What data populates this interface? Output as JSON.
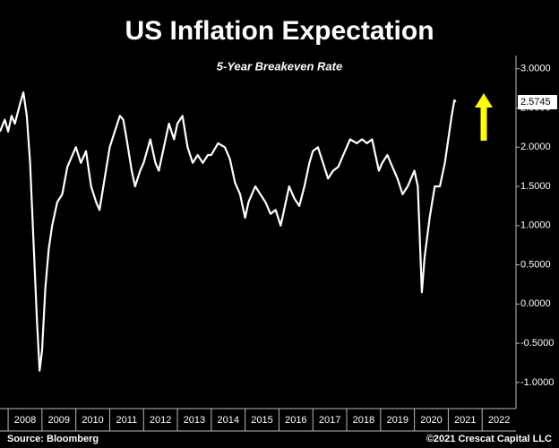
{
  "chart_data": {
    "type": "line",
    "title": "US Inflation Expectation",
    "subtitle": "5-Year Breakeven Rate",
    "source": "Source: Bloomberg",
    "credit": "©2021 Crescat Capital LLC",
    "color": "#ffffff",
    "arrow_color": "#ffff00",
    "x": [
      2007.76,
      2007.9,
      2008.0,
      2008.1,
      2008.2,
      2008.35,
      2008.45,
      2008.55,
      2008.65,
      2008.75,
      2008.85,
      2008.93,
      2009.0,
      2009.1,
      2009.2,
      2009.3,
      2009.45,
      2009.6,
      2009.75,
      2009.9,
      2010.0,
      2010.15,
      2010.3,
      2010.45,
      2010.6,
      2010.7,
      2010.85,
      2011.0,
      2011.15,
      2011.3,
      2011.4,
      2011.5,
      2011.65,
      2011.75,
      2011.9,
      2012.0,
      2012.2,
      2012.35,
      2012.45,
      2012.6,
      2012.75,
      2012.9,
      2013.0,
      2013.15,
      2013.3,
      2013.45,
      2013.6,
      2013.75,
      2013.9,
      2014.0,
      2014.2,
      2014.4,
      2014.55,
      2014.7,
      2014.85,
      2015.0,
      2015.1,
      2015.3,
      2015.45,
      2015.6,
      2015.75,
      2015.9,
      2016.05,
      2016.15,
      2016.3,
      2016.45,
      2016.6,
      2016.75,
      2016.9,
      2017.0,
      2017.15,
      2017.3,
      2017.45,
      2017.6,
      2017.75,
      2017.9,
      2018.1,
      2018.3,
      2018.45,
      2018.6,
      2018.75,
      2018.85,
      2018.95,
      2019.05,
      2019.2,
      2019.35,
      2019.5,
      2019.65,
      2019.8,
      2019.9,
      2020.0,
      2020.1,
      2020.18,
      2020.22,
      2020.3,
      2020.45,
      2020.6,
      2020.75,
      2020.9,
      2021.0,
      2021.1,
      2021.18,
      2021.22
    ],
    "values": [
      2.2,
      2.35,
      2.2,
      2.4,
      2.3,
      2.55,
      2.7,
      2.4,
      1.8,
      0.8,
      -0.2,
      -0.85,
      -0.6,
      0.2,
      0.7,
      1.0,
      1.3,
      1.4,
      1.75,
      1.9,
      2.0,
      1.8,
      1.95,
      1.5,
      1.3,
      1.2,
      1.6,
      2.0,
      2.2,
      2.4,
      2.35,
      2.1,
      1.7,
      1.5,
      1.7,
      1.8,
      2.1,
      1.8,
      1.7,
      2.0,
      2.3,
      2.1,
      2.3,
      2.4,
      2.0,
      1.8,
      1.9,
      1.8,
      1.9,
      1.9,
      2.05,
      2.0,
      1.85,
      1.55,
      1.4,
      1.1,
      1.3,
      1.5,
      1.4,
      1.3,
      1.15,
      1.2,
      1.0,
      1.2,
      1.5,
      1.35,
      1.25,
      1.5,
      1.8,
      1.95,
      2.0,
      1.8,
      1.6,
      1.7,
      1.75,
      1.9,
      2.1,
      2.05,
      2.1,
      2.05,
      2.1,
      1.9,
      1.7,
      1.8,
      1.9,
      1.75,
      1.6,
      1.4,
      1.5,
      1.6,
      1.7,
      1.5,
      0.6,
      0.15,
      0.6,
      1.1,
      1.5,
      1.5,
      1.8,
      2.1,
      2.4,
      2.6,
      2.5745
    ],
    "xlim": [
      2007.76,
      2023
    ],
    "xticks": [
      2008,
      2009,
      2010,
      2011,
      2012,
      2013,
      2014,
      2015,
      2016,
      2017,
      2018,
      2019,
      2020,
      2021,
      2022
    ],
    "ylim": [
      -1.15,
      3.1
    ],
    "yticks": [
      {
        "value": 3,
        "label": "3.0000"
      },
      {
        "value": 2.5,
        "label": "2.5000"
      },
      {
        "value": 2,
        "label": "2.0000"
      },
      {
        "value": 1.5,
        "label": "1.5000"
      },
      {
        "value": 1,
        "label": "1.0000"
      },
      {
        "value": 0.5,
        "label": "0.5000"
      },
      {
        "value": 0,
        "label": "0.0000"
      },
      {
        "value": -0.5,
        "label": "-0.5000"
      },
      {
        "value": -1,
        "label": "-1.0000"
      }
    ]
  }
}
